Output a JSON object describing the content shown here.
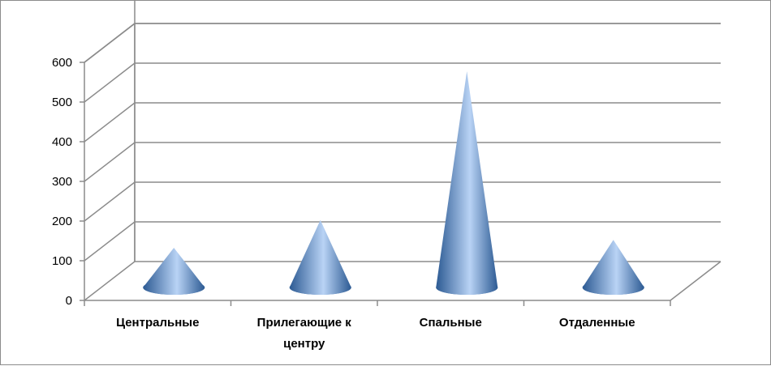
{
  "chart_data": {
    "type": "bar",
    "style": "3d-cone",
    "categories": [
      "Центральные",
      "Прилегающие к центру",
      "Спальные",
      "Отдаленные"
    ],
    "category_lines": [
      [
        "Центральные"
      ],
      [
        "Прилегающие к",
        "центру"
      ],
      [
        "Спальные"
      ],
      [
        "Отдаленные"
      ]
    ],
    "values": [
      100,
      170,
      545,
      120
    ],
    "ylim": [
      0,
      600
    ],
    "yticks": [
      0,
      100,
      200,
      300,
      400,
      500,
      600
    ],
    "title": "",
    "xlabel": "",
    "ylabel": "",
    "grid": true,
    "legend": "none",
    "colors": {
      "cone": "#4f81bd",
      "cone_light": "#b9d3f5",
      "cone_dark": "#2c5a93",
      "grid": "#8c8c8c"
    }
  }
}
